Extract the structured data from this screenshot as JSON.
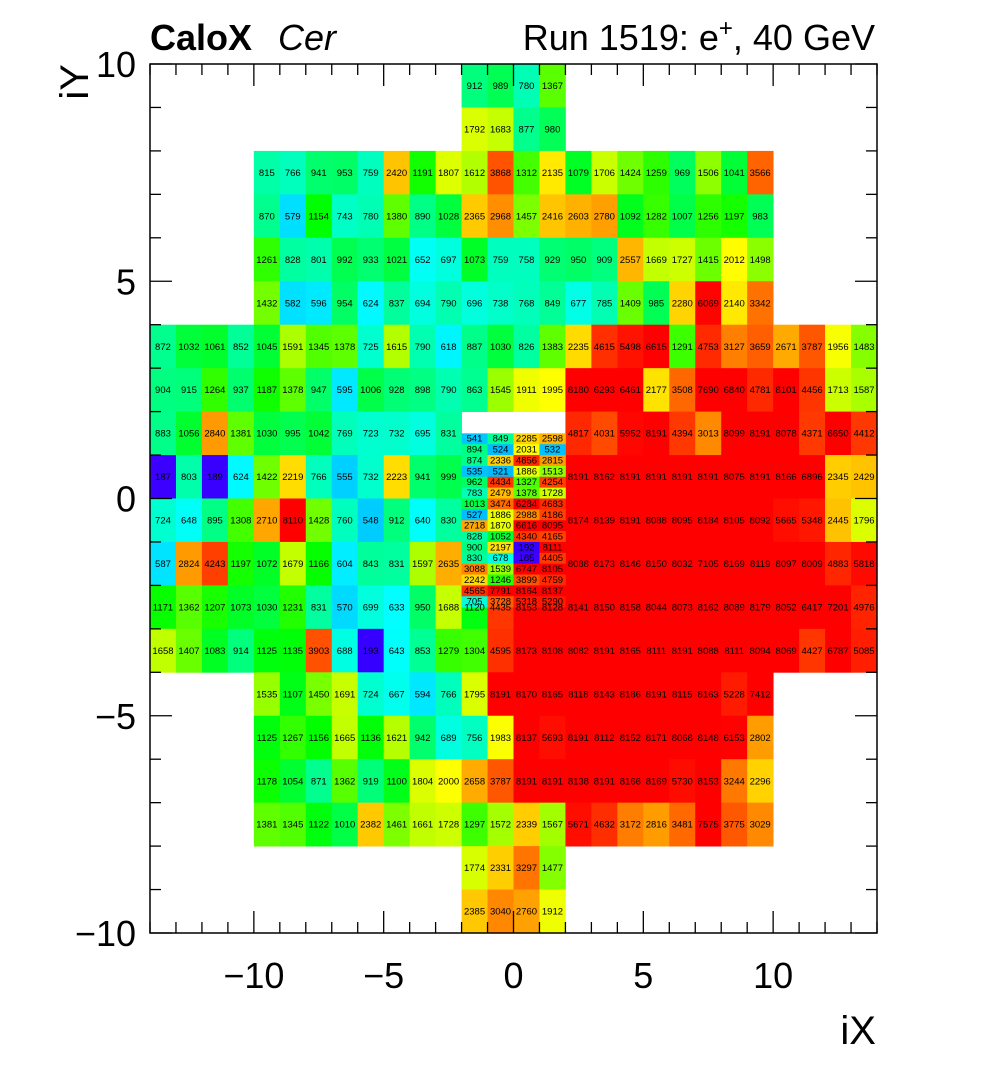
{
  "header": {
    "title_bold": "CaloX",
    "title_italic": "Cer",
    "run_prefix": "Run 1519: e",
    "run_sup": "+",
    "run_suffix": ", 40 GeV"
  },
  "chart_data": {
    "type": "heatmap",
    "xlabel": "iX",
    "ylabel": "iY",
    "xlim": [
      -14,
      14
    ],
    "ylim": [
      -10,
      10
    ],
    "xticks": [
      -10,
      -5,
      0,
      5,
      10
    ],
    "yticks": [
      -10,
      -5,
      0,
      5,
      10
    ],
    "x_tick_labels": [
      "−10",
      "−5",
      "0",
      "5",
      "10"
    ],
    "y_tick_labels": [
      "−10",
      "−5",
      "0",
      "5",
      "10"
    ],
    "color_max": 8191,
    "colorscale": "rainbow",
    "rows": [
      {
        "y": 9,
        "x0": -2,
        "values": [
          912,
          989,
          780,
          1367
        ]
      },
      {
        "y": 8,
        "x0": -2,
        "values": [
          1792,
          1683,
          877,
          980
        ]
      },
      {
        "y": 7,
        "x0": -10,
        "values": [
          815,
          766,
          941,
          953,
          759,
          2420,
          1191,
          1807,
          1612,
          3868,
          1312,
          2135,
          1079,
          1706,
          1424,
          1259,
          969,
          1506,
          1041,
          3566
        ]
      },
      {
        "y": 6,
        "x0": -10,
        "values": [
          870,
          579,
          1154,
          743,
          780,
          1380,
          890,
          1028,
          2365,
          2968,
          1457,
          2416,
          2603,
          2780,
          1092,
          1282,
          1007,
          1256,
          1197,
          983
        ]
      },
      {
        "y": 5,
        "x0": -10,
        "values": [
          1261,
          828,
          801,
          992,
          933,
          1021,
          652,
          697,
          1073,
          759,
          758,
          929,
          950,
          909,
          2557,
          1669,
          1727,
          1415,
          2012,
          1498
        ]
      },
      {
        "y": 4,
        "x0": -10,
        "values": [
          1432,
          582,
          596,
          954,
          624,
          837,
          694,
          790,
          696,
          738,
          768,
          849,
          677,
          785,
          1409,
          985,
          2280,
          6069,
          2140,
          3342
        ]
      },
      {
        "y": 3,
        "x0": -14,
        "values": [
          872,
          1032,
          1061,
          852,
          1045,
          1591,
          1345,
          1378,
          725,
          1615,
          790,
          618,
          887,
          1030,
          826,
          1383,
          2235,
          4615,
          5498,
          6615,
          1291,
          4753,
          3127,
          3659,
          2671,
          3787,
          1956,
          1483
        ]
      },
      {
        "y": 2,
        "x0": -14,
        "values": [
          904,
          915,
          1264,
          937,
          1187,
          1378,
          947,
          595,
          1006,
          928,
          898,
          790,
          863,
          1545,
          1911,
          1995,
          8180,
          6293,
          6461,
          2177,
          3508,
          7690,
          6840,
          4781,
          8101,
          4456,
          1713,
          1587
        ]
      },
      {
        "y": 1,
        "x0": -14,
        "values": [
          883,
          1056,
          2840,
          1381,
          1030,
          995,
          1042,
          769,
          723,
          732,
          695,
          831,
          null,
          null,
          null,
          null,
          4817,
          4031,
          5952,
          8191,
          4394,
          3013,
          8099,
          8191,
          8078,
          4371,
          6650,
          4412
        ]
      },
      {
        "y": 0,
        "x0": -14,
        "values": [
          187,
          803,
          189,
          624,
          1422,
          2219,
          766,
          555,
          732,
          2223,
          941,
          999,
          null,
          null,
          null,
          null,
          8191,
          8162,
          8191,
          8191,
          8191,
          8191,
          8075,
          8191,
          8166,
          6896,
          2345,
          2429
        ]
      },
      {
        "y": -1,
        "x0": -14,
        "values": [
          724,
          648,
          895,
          1308,
          2710,
          8110,
          1428,
          760,
          548,
          912,
          640,
          830,
          null,
          null,
          null,
          null,
          8174,
          8139,
          8191,
          8088,
          8095,
          8184,
          8105,
          8092,
          5665,
          5348,
          2445,
          1796
        ]
      },
      {
        "y": -2,
        "x0": -14,
        "values": [
          587,
          2824,
          4243,
          1197,
          1072,
          1679,
          1166,
          604,
          843,
          831,
          1597,
          2635,
          null,
          null,
          null,
          null,
          8088,
          8173,
          8146,
          8150,
          8032,
          7105,
          8169,
          8119,
          8097,
          8009,
          4883,
          5818
        ]
      },
      {
        "y": -3,
        "x0": -14,
        "values": [
          1171,
          1362,
          1207,
          1073,
          1030,
          1231,
          831,
          570,
          699,
          633,
          950,
          1688,
          1120,
          4435,
          8153,
          8128,
          8141,
          8150,
          8158,
          8044,
          8073,
          8162,
          8089,
          8179,
          8052,
          6417,
          7201,
          4976
        ]
      },
      {
        "y": -4,
        "x0": -14,
        "values": [
          1658,
          1407,
          1083,
          914,
          1125,
          1135,
          3903,
          688,
          193,
          643,
          853,
          1279,
          1304,
          4595,
          8173,
          8108,
          8082,
          8191,
          8165,
          8111,
          8191,
          8088,
          8111,
          8094,
          8069,
          4427,
          6787,
          5085
        ]
      },
      {
        "y": -5,
        "x0": -10,
        "values": [
          1535,
          1107,
          1450,
          1691,
          724,
          667,
          594,
          766,
          1795,
          8191,
          8170,
          8165,
          8118,
          8143,
          8186,
          8191,
          8115,
          8163,
          5228,
          7412
        ]
      },
      {
        "y": -6,
        "x0": -10,
        "values": [
          1125,
          1267,
          1156,
          1665,
          1136,
          1621,
          942,
          689,
          756,
          1983,
          8137,
          5693,
          8191,
          8112,
          8152,
          8171,
          8068,
          8148,
          6153,
          2802
        ]
      },
      {
        "y": -7,
        "x0": -10,
        "values": [
          1178,
          1054,
          871,
          1362,
          919,
          1100,
          1804,
          2000,
          2658,
          3787,
          8191,
          8191,
          8138,
          8191,
          8166,
          8169,
          5730,
          8153,
          3244,
          2296
        ]
      },
      {
        "y": -8,
        "x0": -10,
        "values": [
          1381,
          1345,
          1122,
          1010,
          2382,
          1461,
          1661,
          1728,
          1297,
          1572,
          2339,
          1567,
          5671,
          4632,
          3172,
          2816,
          3481,
          7575,
          3775,
          3029
        ]
      },
      {
        "y": -9,
        "x0": -2,
        "values": [
          1774,
          2331,
          3297,
          1477
        ]
      },
      {
        "y": -10,
        "x0": -2,
        "values": [
          2385,
          3040,
          2760,
          1912
        ]
      }
    ],
    "fine_region": {
      "x0": -2,
      "x1": 2,
      "y0": -2.5,
      "y1": 1.5,
      "sub_rows": 16,
      "rows": [
        [
          541,
          849,
          2285,
          2598
        ],
        [
          894,
          524,
          2031,
          532
        ],
        [
          874,
          2336,
          4856,
          2815
        ],
        [
          535,
          521,
          1886,
          1513
        ],
        [
          962,
          4434,
          1327,
          4254
        ],
        [
          783,
          2479,
          1378,
          1728
        ],
        [
          1013,
          3474,
          6284,
          4683
        ],
        [
          527,
          1886,
          2988,
          4186
        ],
        [
          2718,
          1870,
          6616,
          8095
        ],
        [
          828,
          1052,
          4340,
          4165
        ],
        [
          900,
          2197,
          192,
          8111
        ],
        [
          830,
          678,
          185,
          4405
        ],
        [
          3088,
          1539,
          6747,
          8105
        ],
        [
          2242,
          1246,
          3899,
          4759
        ],
        [
          4565,
          7791,
          8164,
          8137
        ],
        [
          705,
          3728,
          5318,
          5290
        ]
      ]
    }
  }
}
